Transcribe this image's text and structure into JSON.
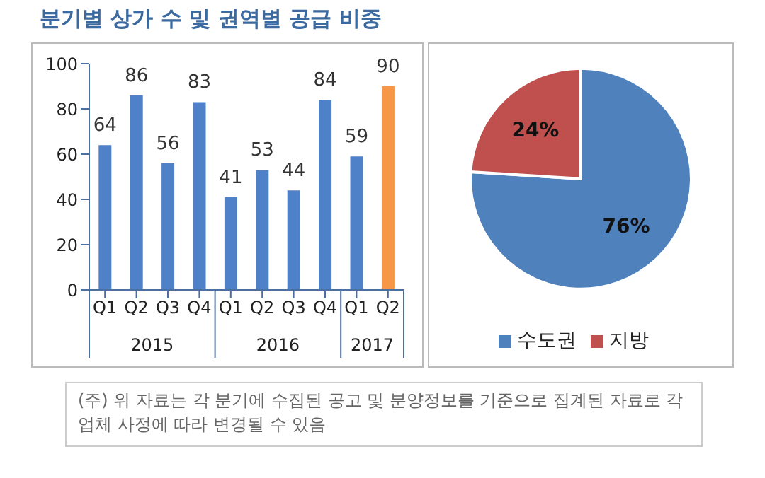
{
  "chart_data": [
    {
      "type": "bar",
      "title": "분기별 상가 수 및 권역별 공급 비중",
      "categories": [
        "Q1",
        "Q2",
        "Q3",
        "Q4",
        "Q1",
        "Q2",
        "Q3",
        "Q4",
        "Q1",
        "Q2"
      ],
      "values": [
        64,
        86,
        56,
        83,
        41,
        53,
        44,
        84,
        59,
        90
      ],
      "colors": [
        "#4f81c9",
        "#4f81c9",
        "#4f81c9",
        "#4f81c9",
        "#4f81c9",
        "#4f81c9",
        "#4f81c9",
        "#4f81c9",
        "#4f81c9",
        "#f79646"
      ],
      "ylim": [
        0,
        100
      ],
      "yticks": [
        0,
        20,
        40,
        60,
        80,
        100
      ],
      "grid": false,
      "data_labels": true,
      "annotations": [
        "2015",
        "2016",
        "2017"
      ]
    },
    {
      "type": "pie",
      "categories": [
        "수도권",
        "지방"
      ],
      "values": [
        76,
        24
      ],
      "colors": [
        "#4f81bd",
        "#c0504d"
      ],
      "value_labels": [
        "76%",
        "24%"
      ],
      "legend": "bottom",
      "annotations": [
        "(주) 위 자료는 각 분기에 수집된 공고 및 분양정보를 기준으로 집계된 자료로 각 업체 사정에 따라 변경될 수 있음"
      ]
    }
  ]
}
